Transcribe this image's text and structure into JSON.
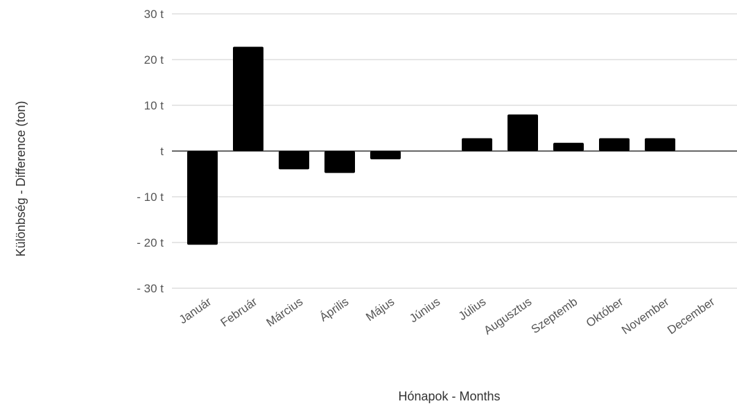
{
  "chart_data": {
    "type": "bar",
    "xlabel": "Hónapok - Months",
    "ylabel": "Különbség - Difference (ton)",
    "categories": [
      "Január",
      "Február",
      "Március",
      "Április",
      "Május",
      "Június",
      "Július",
      "Augusztus",
      "Szeptemb",
      "Október",
      "November",
      "December"
    ],
    "values": [
      -20.5,
      22.8,
      -4,
      -4.8,
      -1.8,
      0,
      2.8,
      8,
      1.8,
      2.8,
      2.8,
      0
    ],
    "ylim": [
      -30,
      30
    ],
    "yticks": [
      30,
      20,
      10,
      0,
      -10,
      -20,
      -30
    ],
    "ytick_labels": [
      "30 t",
      "20 t",
      "10 t",
      "t",
      "- 10 t",
      "- 20 t",
      "- 30 t"
    ],
    "grid": true,
    "legend": "none",
    "colors": {
      "bar": "#000000",
      "grid": "#cccccc",
      "zero_line": "#333333"
    }
  }
}
